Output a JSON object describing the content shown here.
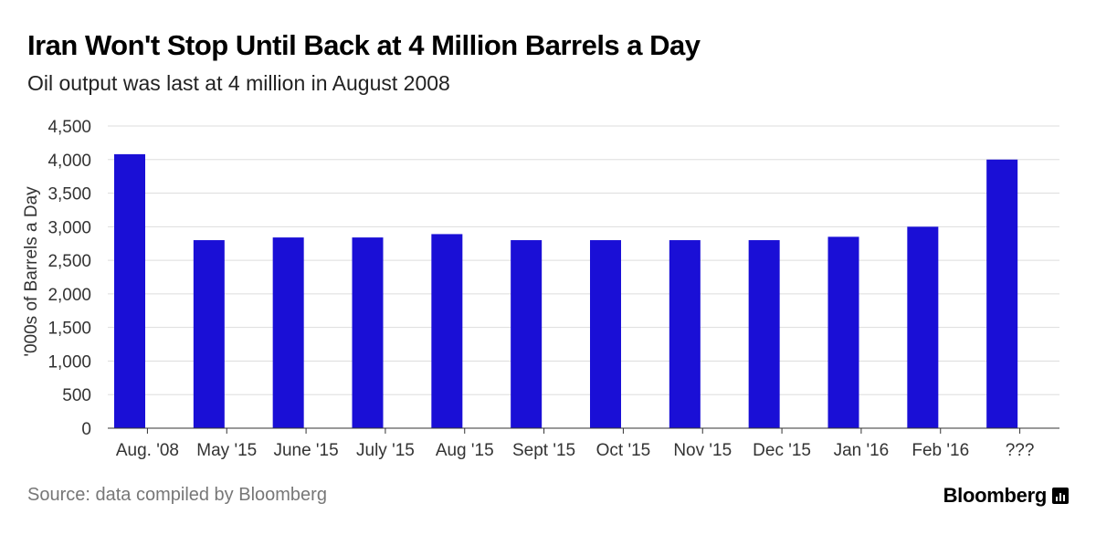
{
  "title": "Iran Won't Stop Until Back at 4 Million Barrels a Day",
  "subtitle": "Oil output was last at 4 million in August 2008",
  "source": "Source: data compiled by Bloomberg",
  "brand": "Bloomberg",
  "chart_data": {
    "type": "bar",
    "categories": [
      "Aug. '08",
      "May '15",
      "June '15",
      "July '15",
      "Aug '15",
      "Sept '15",
      "Oct '15",
      "Nov '15",
      "Dec '15",
      "Jan '16",
      "Feb '16",
      "???"
    ],
    "values": [
      4080,
      2800,
      2840,
      2840,
      2890,
      2800,
      2800,
      2800,
      2800,
      2850,
      3000,
      4000
    ],
    "ylabel": "'000s of Barrels a Day",
    "ylim": [
      0,
      4500
    ],
    "yticks": [
      0,
      500,
      1000,
      1500,
      2000,
      2500,
      3000,
      3500,
      4000,
      4500
    ],
    "ytick_labels": [
      "0",
      "500",
      "1,000",
      "1,500",
      "2,000",
      "2,500",
      "3,000",
      "3,500",
      "4,000",
      "4,500"
    ],
    "grid": true,
    "bar_color": "#1a0fd6"
  }
}
